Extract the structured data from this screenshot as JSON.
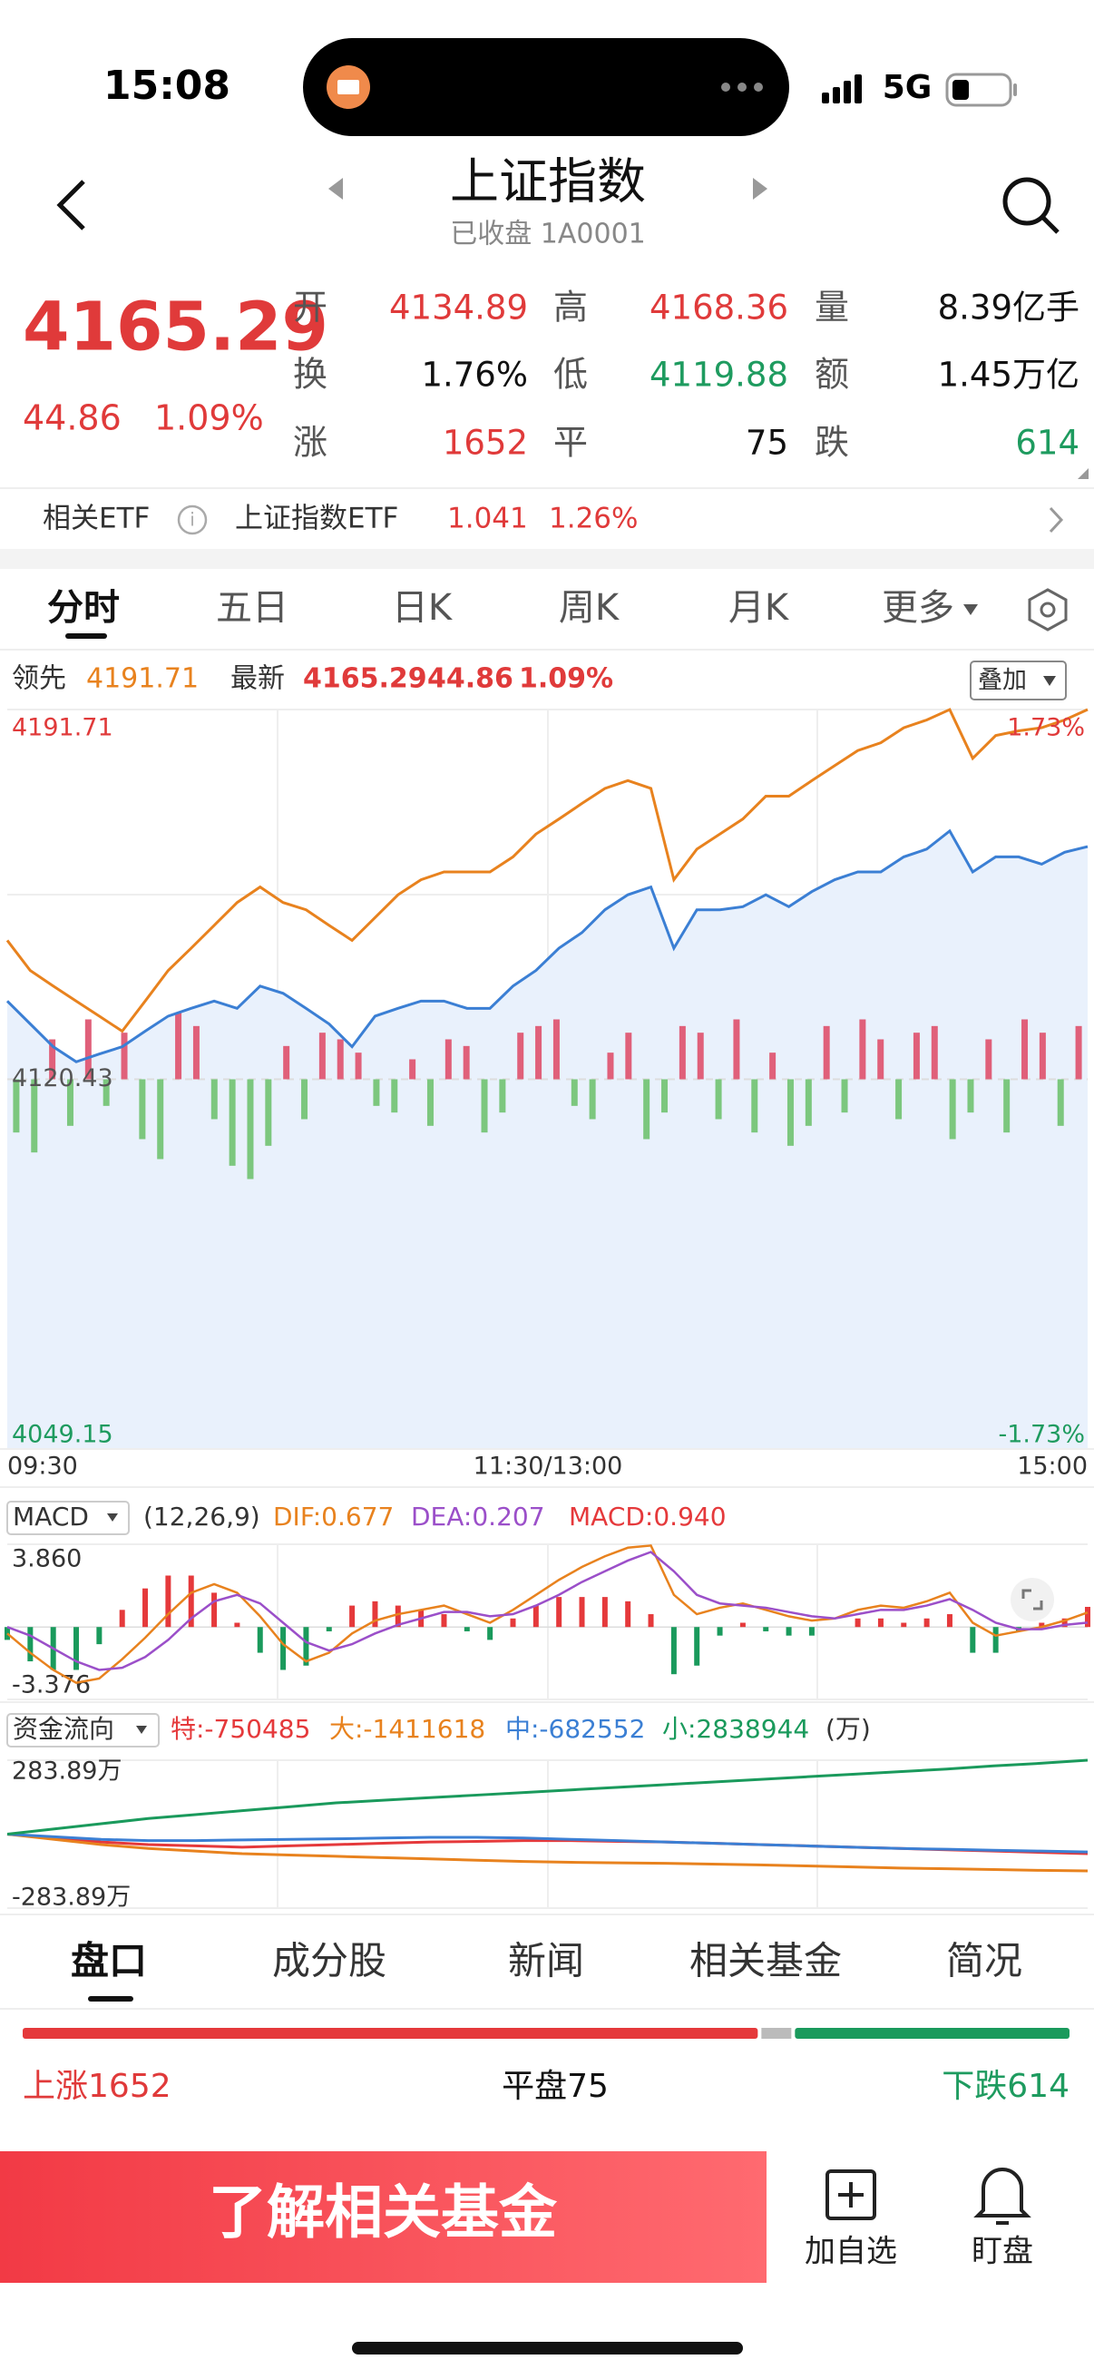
{
  "status": {
    "time": "15:08",
    "network": "5G"
  },
  "header": {
    "title": "上证指数",
    "subtitle": "已收盘 1A0001"
  },
  "quote": {
    "price": 4165.29,
    "change": 44.86,
    "change_pct": "1.09%",
    "fields": [
      {
        "label": "开",
        "value": 4134.89
      },
      {
        "label": "高",
        "value": 4168.36
      },
      {
        "label": "量",
        "value": "8.39亿手"
      },
      {
        "label": "换",
        "value": "1.76%"
      },
      {
        "label": "低",
        "value": 4119.88
      },
      {
        "label": "额",
        "value": "1.45万亿"
      },
      {
        "label": "涨",
        "value": 1652
      },
      {
        "label": "平",
        "value": 75
      },
      {
        "label": "跌",
        "value": 614
      }
    ]
  },
  "etf": {
    "label": "相关ETF",
    "name": "上证指数ETF",
    "price": 1.041,
    "change_pct": "1.26%"
  },
  "tabs": [
    "分时",
    "五日",
    "日K",
    "周K",
    "月K",
    "更多"
  ],
  "chart_data": [
    {
      "type": "line",
      "latest_value": 4165.29,
      "latest_change": 44.86,
      "latest_pct": "1.09%",
      "overlay": "叠加",
      "ylim": [
        4049.15,
        4191.71
      ],
      "yticks": [
        4049.15,
        4120.43,
        4191.71
      ],
      "pct_labels": [
        "1.73%",
        "-1.73%"
      ],
      "x_labels": [
        "09:30",
        "11:30/13:00",
        "15:00"
      ],
      "series": [
        {
          "name": "领先",
          "color": "#e8821e",
          "values": [
            4147.2,
            4141.4,
            4138.4,
            4135.5,
            4132.6,
            4129.7,
            4135.5,
            4141.4,
            4145.7,
            4150.1,
            4154.5,
            4157.5,
            4154.5,
            4153.1,
            4150.1,
            4147.2,
            4151.6,
            4156.0,
            4158.9,
            4160.4,
            4160.4,
            4160.4,
            4163.3,
            4167.7,
            4170.6,
            4173.6,
            4176.5,
            4178.0,
            4176.5,
            4158.9,
            4164.8,
            4167.7,
            4170.6,
            4175.0,
            4175.0,
            4178.0,
            4180.9,
            4183.8,
            4185.3,
            4188.2,
            4189.7,
            4191.7,
            4182.3,
            4186.7,
            4187.6,
            4188.2,
            4189.7,
            4191.71
          ]
        },
        {
          "name": "最新",
          "color": "#3b7fd4",
          "values": [
            4135.5,
            4131.1,
            4126.7,
            4123.8,
            4125.3,
            4126.7,
            4129.7,
            4132.6,
            4134.1,
            4135.5,
            4134.1,
            4138.4,
            4137.0,
            4134.1,
            4131.1,
            4126.7,
            4132.6,
            4134.1,
            4135.5,
            4135.5,
            4134.1,
            4134.1,
            4138.4,
            4141.4,
            4145.7,
            4148.7,
            4153.1,
            4156.0,
            4157.5,
            4145.7,
            4153.1,
            4153.1,
            4153.7,
            4156.0,
            4153.7,
            4156.6,
            4158.9,
            4160.4,
            4160.4,
            4163.3,
            4164.8,
            4168.3,
            4160.4,
            4163.3,
            4163.3,
            4161.9,
            4164.2,
            4165.29
          ]
        }
      ],
      "up_color": "#e0607a",
      "down_color": "#7cc77e",
      "bar_values": [
        -40,
        -55,
        30,
        -35,
        45,
        -20,
        35,
        -45,
        -60,
        50,
        40,
        -30,
        -65,
        -75,
        -50,
        25,
        -30,
        35,
        30,
        20,
        -20,
        -25,
        15,
        -35,
        30,
        25,
        -40,
        -25,
        35,
        40,
        45,
        -20,
        -30,
        20,
        35,
        -45,
        -25,
        40,
        35,
        -30,
        45,
        -40,
        20,
        -50,
        -35,
        40,
        -25,
        45,
        30,
        -30,
        35,
        40,
        -45,
        -25,
        30,
        -40,
        45,
        35,
        -35,
        40
      ]
    },
    {
      "type": "macd",
      "indicator": "MACD",
      "params": "(12,26,9)",
      "legend_labels": [
        "DIF:0.677",
        "DEA:0.207",
        "MACD:0.940"
      ],
      "ylim": [
        -3.376,
        3.86
      ],
      "yticks": [
        {
          "value": 3.86,
          "label": "3.860"
        },
        -3.376
      ],
      "up_color": "#e5393b",
      "down_color": "#1a9a5c",
      "series": [
        {
          "color": "#e8821e",
          "values": [
            -0.3,
            -1.2,
            -2.0,
            -2.6,
            -2.4,
            -1.5,
            -0.5,
            0.6,
            1.6,
            2.0,
            1.6,
            0.5,
            -0.8,
            -1.6,
            -1.2,
            -0.3,
            0.3,
            0.6,
            0.8,
            1.0,
            0.6,
            0.2,
            0.8,
            1.5,
            2.2,
            2.8,
            3.3,
            3.7,
            3.8,
            1.5,
            0.6,
            0.9,
            1.1,
            0.8,
            0.5,
            0.3,
            0.4,
            0.8,
            1.0,
            0.9,
            1.2,
            1.6,
            0.2,
            -0.4,
            -0.2,
            0.0,
            0.3,
            0.677
          ]
        },
        {
          "color": "#9b4fc9",
          "values": [
            0.0,
            -0.4,
            -1.0,
            -1.6,
            -2.0,
            -1.9,
            -1.4,
            -0.6,
            0.4,
            1.2,
            1.5,
            1.1,
            0.2,
            -0.7,
            -1.1,
            -0.8,
            -0.3,
            0.1,
            0.4,
            0.7,
            0.7,
            0.5,
            0.6,
            1.0,
            1.5,
            2.1,
            2.6,
            3.1,
            3.5,
            2.6,
            1.5,
            1.1,
            1.0,
            0.9,
            0.7,
            0.5,
            0.4,
            0.6,
            0.8,
            0.8,
            1.0,
            1.3,
            0.8,
            0.2,
            -0.1,
            -0.1,
            0.1,
            0.207
          ]
        },
        {
          "color": "#e5393b",
          "values": [
            -0.6,
            -1.6,
            -2.0,
            -2.0,
            -0.8,
            0.8,
            1.8,
            2.4,
            2.4,
            1.6,
            0.2,
            -1.2,
            -2.0,
            -1.8,
            -0.2,
            1.0,
            1.2,
            1.0,
            0.8,
            0.6,
            -0.2,
            -0.6,
            0.4,
            1.0,
            1.4,
            1.4,
            1.4,
            1.2,
            0.6,
            -2.2,
            -1.8,
            -0.4,
            0.2,
            -0.2,
            -0.4,
            -0.4,
            0.0,
            0.4,
            0.4,
            0.2,
            0.4,
            0.6,
            -1.2,
            -1.2,
            -0.2,
            0.2,
            0.4,
            0.94
          ]
        }
      ]
    },
    {
      "type": "line",
      "title": "资金流向",
      "unit": "(万)",
      "legend_labels": [
        "特:-750485",
        "大:-1411618",
        "中:-682552",
        "小:2838944"
      ],
      "ylim": [
        -283.89,
        283.89
      ],
      "yticks": [
        {
          "value": 283.89,
          "label": "283.89万"
        },
        {
          "value": -283.89,
          "label": "-283.89万"
        }
      ],
      "series": [
        {
          "color": "#e5393b",
          "values": [
            0,
            -15,
            -30,
            -40,
            -45,
            -50,
            -45,
            -40,
            -35,
            -30,
            -28,
            -25,
            -25,
            -28,
            -30,
            -35,
            -40,
            -45,
            -50,
            -55,
            -60,
            -65,
            -70,
            -75.05
          ]
        },
        {
          "color": "#e8821e",
          "values": [
            0,
            -20,
            -40,
            -55,
            -65,
            -75,
            -80,
            -85,
            -90,
            -95,
            -100,
            -105,
            -108,
            -110,
            -112,
            -115,
            -118,
            -122,
            -126,
            -130,
            -133,
            -136,
            -139,
            -141.16
          ]
        },
        {
          "color": "#3b7fd4",
          "values": [
            0,
            -10,
            -20,
            -25,
            -25,
            -22,
            -20,
            -18,
            -15,
            -12,
            -12,
            -15,
            -20,
            -25,
            -30,
            -35,
            -40,
            -45,
            -50,
            -55,
            -58,
            -62,
            -65,
            -68.26
          ]
        },
        {
          "color": "#1a9a5c",
          "values": [
            0,
            20,
            40,
            60,
            75,
            90,
            105,
            120,
            130,
            140,
            150,
            160,
            170,
            180,
            190,
            200,
            210,
            220,
            230,
            240,
            250,
            262,
            272,
            283.89
          ]
        }
      ]
    }
  ],
  "sub_tabs": [
    "盘口",
    "成分股",
    "新闻",
    "相关基金",
    "简况"
  ],
  "breadth": {
    "up_label": "上涨",
    "flat_label": "平盘",
    "down_label": "下跌"
  },
  "actions": {
    "primary": "了解相关基金",
    "watchlist": "加自选",
    "monitor": "盯盘"
  }
}
